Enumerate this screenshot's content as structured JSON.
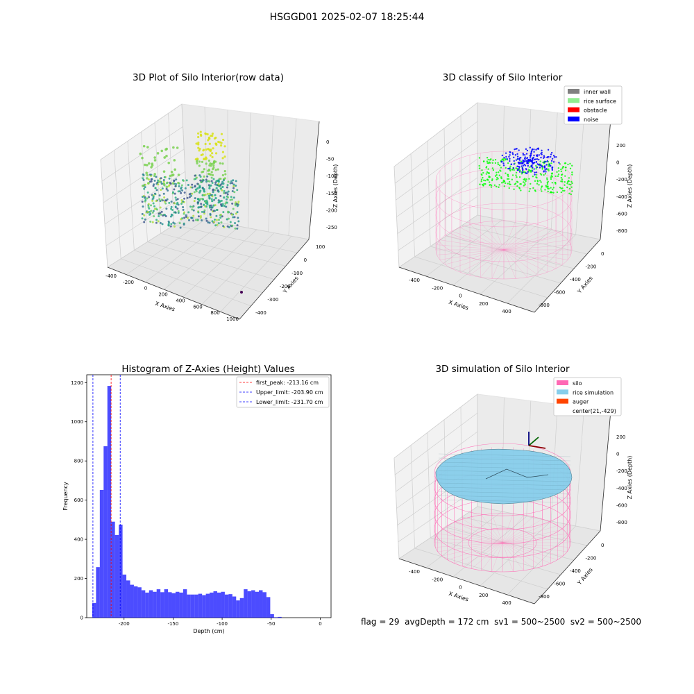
{
  "figure": {
    "suptitle": "HSGGD01 2025-02-07 18:25:44",
    "status": {
      "flag": "flag = 29",
      "avg_depth": "avgDepth = 172 cm",
      "sv1": "sv1 = 500~2500",
      "sv2": "sv2 = 500~2500"
    }
  },
  "panels": {
    "raw": {
      "title": "3D Plot of Silo Interior(row data)",
      "xlabel": "X Axies",
      "ylabel": "Y Axies",
      "zlabel": "Z Axies (Depth)",
      "xticks": [
        "-400",
        "-200",
        "0",
        "200",
        "400",
        "600",
        "800",
        "1000"
      ],
      "yticks": [
        "100",
        "0",
        "-100",
        "-200",
        "-300",
        "-400"
      ],
      "zticks": [
        "0",
        "-50",
        "-100",
        "-150",
        "-200",
        "-250"
      ]
    },
    "classify": {
      "title": "3D classify of Silo Interior",
      "xlabel": "X Axies",
      "ylabel": "Y Axies",
      "zlabel": "Z Axies (Depth)",
      "xticks": [
        "-400",
        "-200",
        "0",
        "200",
        "400"
      ],
      "yticks": [
        "0",
        "-200",
        "-400",
        "-600",
        "-800"
      ],
      "zticks": [
        "200",
        "0",
        "-200",
        "-400",
        "-600",
        "-800"
      ],
      "legend": [
        {
          "label": "inner wall",
          "color": "#808080"
        },
        {
          "label": "rice surface",
          "color": "#90ee90"
        },
        {
          "label": "obstacle",
          "color": "#ff0000"
        },
        {
          "label": "noise",
          "color": "#0000ff"
        }
      ]
    },
    "simulation": {
      "title": "3D simulation of Silo Interior",
      "xlabel": "X Axies",
      "ylabel": "Y Axies",
      "zlabel": "Z Axies (Depth)",
      "xticks": [
        "-400",
        "-200",
        "0",
        "200",
        "400"
      ],
      "yticks": [
        "0",
        "-200",
        "-400",
        "-600",
        "-800"
      ],
      "zticks": [
        "200",
        "0",
        "-200",
        "-400",
        "-600",
        "-800"
      ],
      "legend": [
        {
          "label": "silo",
          "color": "#ff69b4"
        },
        {
          "label": "rice simulation",
          "color": "#87ceeb"
        },
        {
          "label": "auger",
          "color": "#ff4500"
        },
        {
          "label": "center(21,-429)",
          "color": ""
        }
      ]
    }
  },
  "chart_data": {
    "type": "bar",
    "title": "Histogram of Z-Axies (Height) Values",
    "xlabel": "Depth (cm)",
    "ylabel": "Frequency",
    "xlim": [
      -238,
      11
    ],
    "ylim": [
      0,
      1240
    ],
    "xticks": [
      -200,
      -150,
      -100,
      -50,
      0
    ],
    "yticks": [
      0,
      200,
      400,
      600,
      800,
      1000,
      1200
    ],
    "bar_color": "#0000ff",
    "bin_width": 3.86,
    "bin_start": -232.4,
    "values": [
      75,
      258,
      652,
      875,
      1183,
      490,
      422,
      475,
      220,
      190,
      168,
      160,
      155,
      140,
      128,
      140,
      132,
      145,
      130,
      145,
      130,
      125,
      132,
      128,
      145,
      118,
      118,
      118,
      122,
      115,
      122,
      128,
      135,
      128,
      132,
      118,
      120,
      108,
      88,
      100,
      145,
      135,
      140,
      132,
      140,
      130,
      105,
      18,
      2,
      4
    ],
    "vlines": [
      {
        "label": "first_peak: -213.16 cm",
        "x": -213.16,
        "color": "#ff0000"
      },
      {
        "label": "Upper_limit: -203.90 cm",
        "x": -203.9,
        "color": "#0000ff"
      },
      {
        "label": "Lower_limit: -231.70 cm",
        "x": -231.7,
        "color": "#0000ff"
      }
    ]
  }
}
